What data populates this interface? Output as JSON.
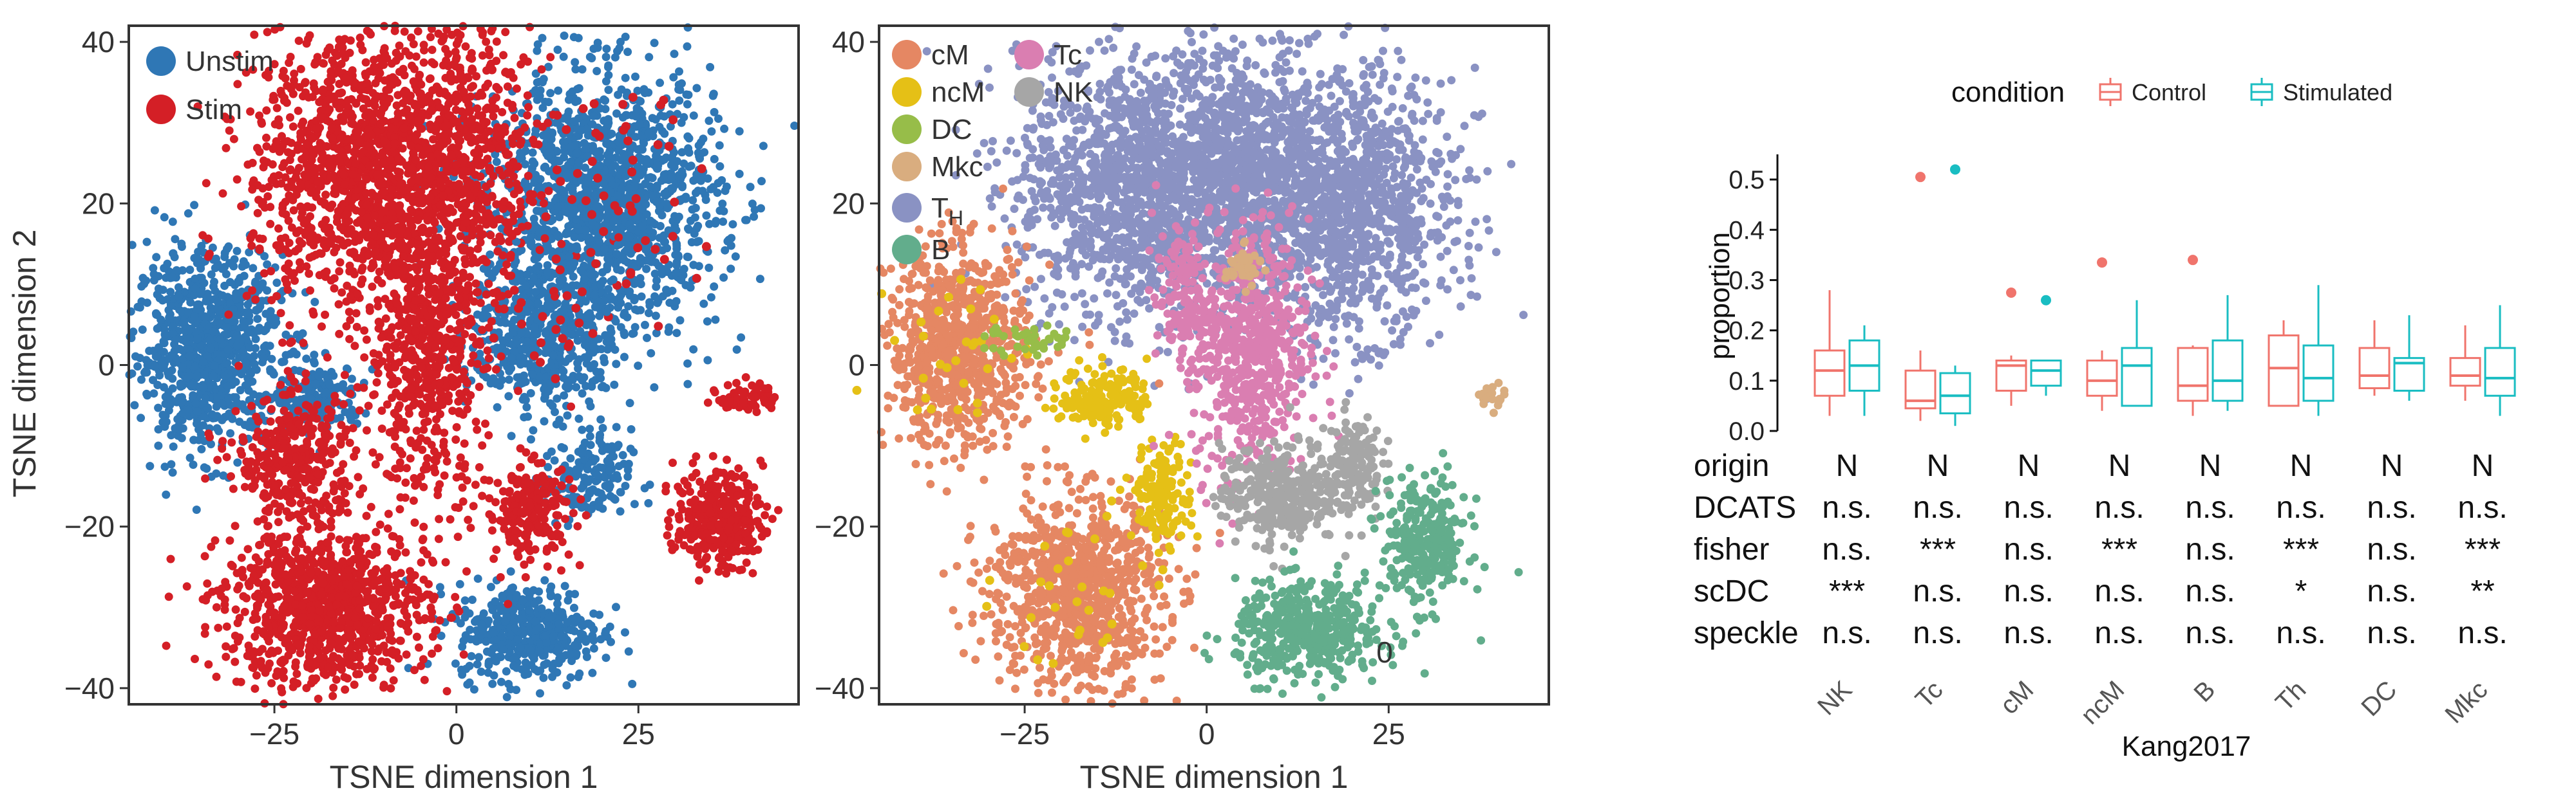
{
  "chart_data": [
    {
      "type": "scatter",
      "xlabel": "TSNE dimension 1",
      "ylabel": "TSNE dimension 2",
      "xlim": [
        -45,
        47
      ],
      "ylim": [
        -42,
        42
      ],
      "xticks": [
        -25,
        0,
        25
      ],
      "yticks": [
        -40,
        -20,
        0,
        20,
        40
      ],
      "legend_position": "top-left",
      "series": [
        {
          "name": "Unstim",
          "color": "#2f77b5"
        },
        {
          "name": "Stim",
          "color": "#d41f26"
        }
      ]
    },
    {
      "type": "scatter",
      "xlabel": "TSNE dimension 1",
      "ylabel": "",
      "xlim": [
        -45,
        47
      ],
      "ylim": [
        -42,
        42
      ],
      "xticks": [
        -25,
        0,
        25
      ],
      "yticks": [
        -40,
        -20,
        0,
        20,
        40
      ],
      "legend_position": "top-left",
      "annotation": "0",
      "series": [
        {
          "name": "cM",
          "color": "#e58763"
        },
        {
          "name": "ncM",
          "color": "#e5c016"
        },
        {
          "name": "DC",
          "color": "#97bd49"
        },
        {
          "name": "Mkc",
          "color": "#d9ad7f"
        },
        {
          "name": "TH",
          "color": "#8a92c3"
        },
        {
          "name": "B",
          "color": "#62ad8c"
        },
        {
          "name": "Tc",
          "color": "#da7eb1"
        },
        {
          "name": "NK",
          "color": "#a6a6a6"
        }
      ]
    },
    {
      "type": "box",
      "title": "Kang2017",
      "ylabel": "proportion",
      "ylim": [
        0,
        0.55
      ],
      "yticks": [
        0.0,
        0.1,
        0.2,
        0.3,
        0.4,
        0.5
      ],
      "legend_title": "condition",
      "legend_position": "top",
      "categories": [
        "NK",
        "Tc",
        "cM",
        "ncM",
        "B",
        "Th",
        "DC",
        "Mkc"
      ],
      "series": [
        {
          "name": "Control",
          "color": "#f0746c",
          "boxes": [
            {
              "min": 0.03,
              "q1": 0.07,
              "median": 0.12,
              "q3": 0.16,
              "max": 0.28,
              "outliers": []
            },
            {
              "min": 0.02,
              "q1": 0.045,
              "median": 0.06,
              "q3": 0.12,
              "max": 0.16,
              "outliers": [
                0.505
              ]
            },
            {
              "min": 0.05,
              "q1": 0.08,
              "median": 0.13,
              "q3": 0.14,
              "max": 0.15,
              "outliers": [
                0.275
              ]
            },
            {
              "min": 0.04,
              "q1": 0.07,
              "median": 0.1,
              "q3": 0.14,
              "max": 0.16,
              "outliers": [
                0.335
              ]
            },
            {
              "min": 0.03,
              "q1": 0.06,
              "median": 0.09,
              "q3": 0.165,
              "max": 0.17,
              "outliers": [
                0.34
              ]
            },
            {
              "min": 0.05,
              "q1": 0.05,
              "median": 0.125,
              "q3": 0.19,
              "max": 0.22,
              "outliers": []
            },
            {
              "min": 0.07,
              "q1": 0.085,
              "median": 0.11,
              "q3": 0.165,
              "max": 0.22,
              "outliers": []
            },
            {
              "min": 0.06,
              "q1": 0.09,
              "median": 0.11,
              "q3": 0.145,
              "max": 0.21,
              "outliers": []
            }
          ]
        },
        {
          "name": "Stimulated",
          "color": "#19bdc2",
          "boxes": [
            {
              "min": 0.03,
              "q1": 0.08,
              "median": 0.13,
              "q3": 0.18,
              "max": 0.21,
              "outliers": []
            },
            {
              "min": 0.01,
              "q1": 0.035,
              "median": 0.07,
              "q3": 0.115,
              "max": 0.13,
              "outliers": [
                0.52
              ]
            },
            {
              "min": 0.07,
              "q1": 0.09,
              "median": 0.12,
              "q3": 0.14,
              "max": 0.14,
              "outliers": [
                0.26
              ]
            },
            {
              "min": 0.05,
              "q1": 0.05,
              "median": 0.13,
              "q3": 0.165,
              "max": 0.26,
              "outliers": []
            },
            {
              "min": 0.04,
              "q1": 0.06,
              "median": 0.1,
              "q3": 0.18,
              "max": 0.27,
              "outliers": []
            },
            {
              "min": 0.03,
              "q1": 0.06,
              "median": 0.105,
              "q3": 0.17,
              "max": 0.29,
              "outliers": []
            },
            {
              "min": 0.06,
              "q1": 0.08,
              "median": 0.135,
              "q3": 0.145,
              "max": 0.23,
              "outliers": []
            },
            {
              "min": 0.03,
              "q1": 0.07,
              "median": 0.105,
              "q3": 0.165,
              "max": 0.25,
              "outliers": []
            }
          ]
        }
      ],
      "table": {
        "row_labels": [
          "origin",
          "DCATS",
          "fisher",
          "scDC",
          "speckle"
        ],
        "rows": [
          [
            "N",
            "N",
            "N",
            "N",
            "N",
            "N",
            "N",
            "N"
          ],
          [
            "n.s.",
            "n.s.",
            "n.s.",
            "n.s.",
            "n.s.",
            "n.s.",
            "n.s.",
            "n.s."
          ],
          [
            "n.s.",
            "***",
            "n.s.",
            "***",
            "n.s.",
            "***",
            "n.s.",
            "***"
          ],
          [
            "***",
            "n.s.",
            "n.s.",
            "n.s.",
            "n.s.",
            "*",
            "n.s.",
            "**"
          ],
          [
            "n.s.",
            "n.s.",
            "n.s.",
            "n.s.",
            "n.s.",
            "n.s.",
            "n.s.",
            "n.s."
          ]
        ]
      }
    }
  ]
}
